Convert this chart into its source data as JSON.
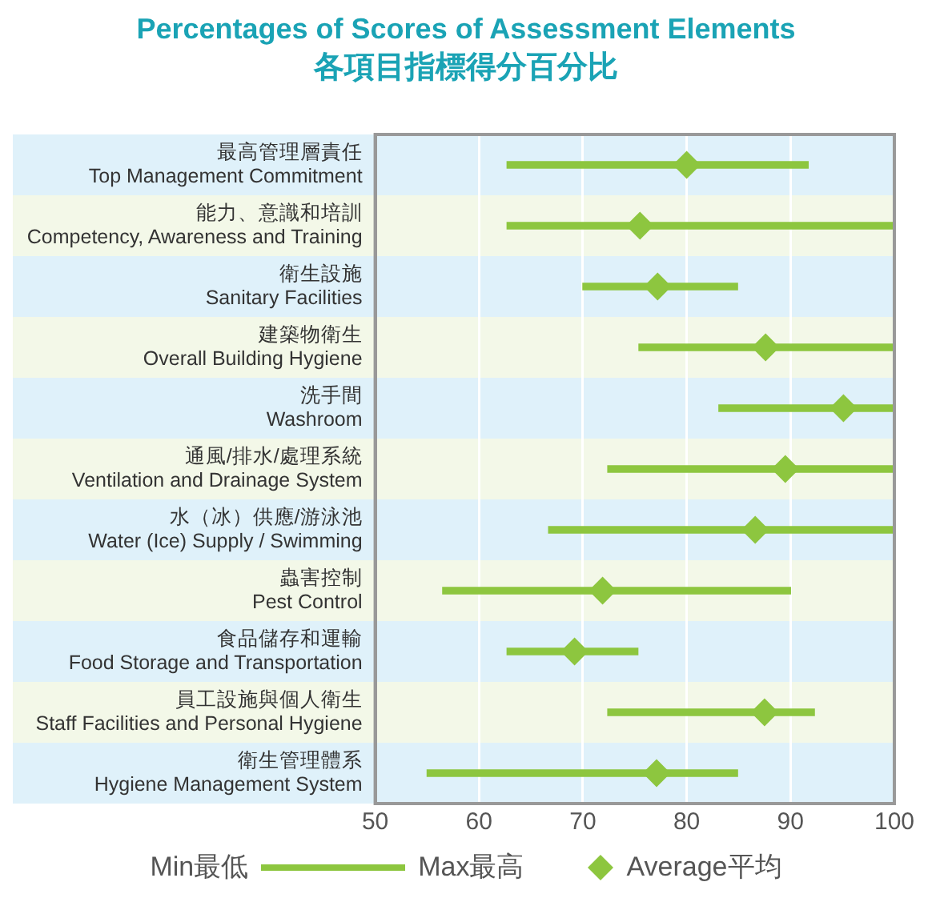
{
  "chart_data": {
    "type": "bar",
    "orientation": "horizontal",
    "title": "Percentages of Scores of Assessment Elements",
    "subtitle": "各項目指標得分百分比",
    "categories": [
      "最高管理層責任\nTop Management Commitment",
      "能力、意識和培訓\nCompetency, Awareness and Training",
      "衛生設施\nSanitary Facilities",
      "建築物衛生\nOverall Building Hygiene",
      "洗手間\nWashroom",
      "通風/排水/處理系統\nVentilation and Drainage System",
      "水（冰）供應/游泳池\nWater (Ice) Supply / Swimming",
      "蟲害控制\nPest Control",
      "食品儲存和運輸\nFood Storage and Transportation",
      "員工設施與個人衛生\nStaff Facilities and Personal Hygiene",
      "衛生管理體系\nHygiene Management System"
    ],
    "series": [
      {
        "name": "Min最低 Max最高",
        "color": "#8dc63f",
        "base": [
          62.7,
          62.7,
          70,
          75.4,
          83.1,
          72.4,
          66.7,
          56.5,
          62.7,
          72.4,
          55.0
        ],
        "values": [
          29.0,
          37.3,
          14.9,
          24.6,
          16.9,
          27.6,
          33.3,
          33.5,
          12.6,
          19.9,
          29.9
        ]
      },
      {
        "name": "Average平均",
        "type": "scatter",
        "color": "#8dc63f",
        "values": [
          80,
          75.5,
          77.2,
          87.6,
          95.1,
          89.5,
          86.6,
          71.9,
          69.2,
          87.5,
          77.1
        ]
      }
    ],
    "xlim": [
      50,
      100
    ],
    "xticks": [
      50,
      60,
      70,
      80,
      90,
      100
    ],
    "grid": "x",
    "marker": "diamond",
    "legend": "bottom"
  }
}
